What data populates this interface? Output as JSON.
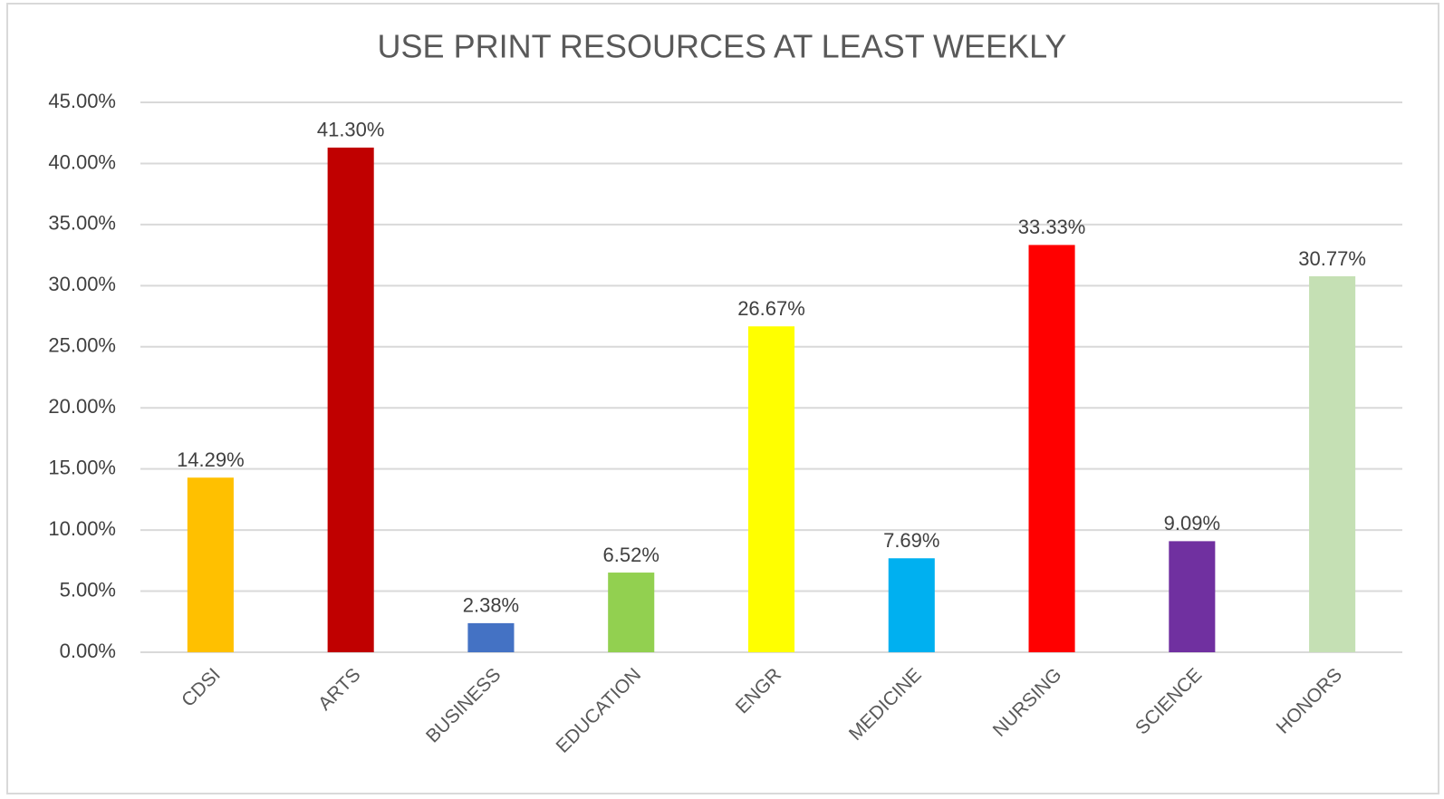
{
  "chart_data": {
    "type": "bar",
    "title": "USE PRINT RESOURCES AT LEAST WEEKLY",
    "categories": [
      "CDSI",
      "ARTS",
      "BUSINESS",
      "EDUCATION",
      "ENGR",
      "MEDICINE",
      "NURSING",
      "SCIENCE",
      "HONORS"
    ],
    "values": [
      14.29,
      41.3,
      2.38,
      6.52,
      26.67,
      7.69,
      33.33,
      9.09,
      30.77
    ],
    "value_labels": [
      "14.29%",
      "41.30%",
      "2.38%",
      "6.52%",
      "26.67%",
      "7.69%",
      "33.33%",
      "9.09%",
      "30.77%"
    ],
    "colors": [
      "#ffc000",
      "#c00000",
      "#4472c4",
      "#92d050",
      "#ffff00",
      "#00b0f0",
      "#ff0000",
      "#7030a0",
      "#c5e0b4"
    ],
    "ylim": [
      0,
      45
    ],
    "yticks": [
      {
        "value": 0,
        "label": "0.00%"
      },
      {
        "value": 5,
        "label": "5.00%"
      },
      {
        "value": 10,
        "label": "10.00%"
      },
      {
        "value": 15,
        "label": "15.00%"
      },
      {
        "value": 20,
        "label": "20.00%"
      },
      {
        "value": 25,
        "label": "25.00%"
      },
      {
        "value": 30,
        "label": "30.00%"
      },
      {
        "value": 35,
        "label": "35.00%"
      },
      {
        "value": 40,
        "label": "40.00%"
      },
      {
        "value": 45,
        "label": "45.00%"
      }
    ],
    "grid": true
  }
}
